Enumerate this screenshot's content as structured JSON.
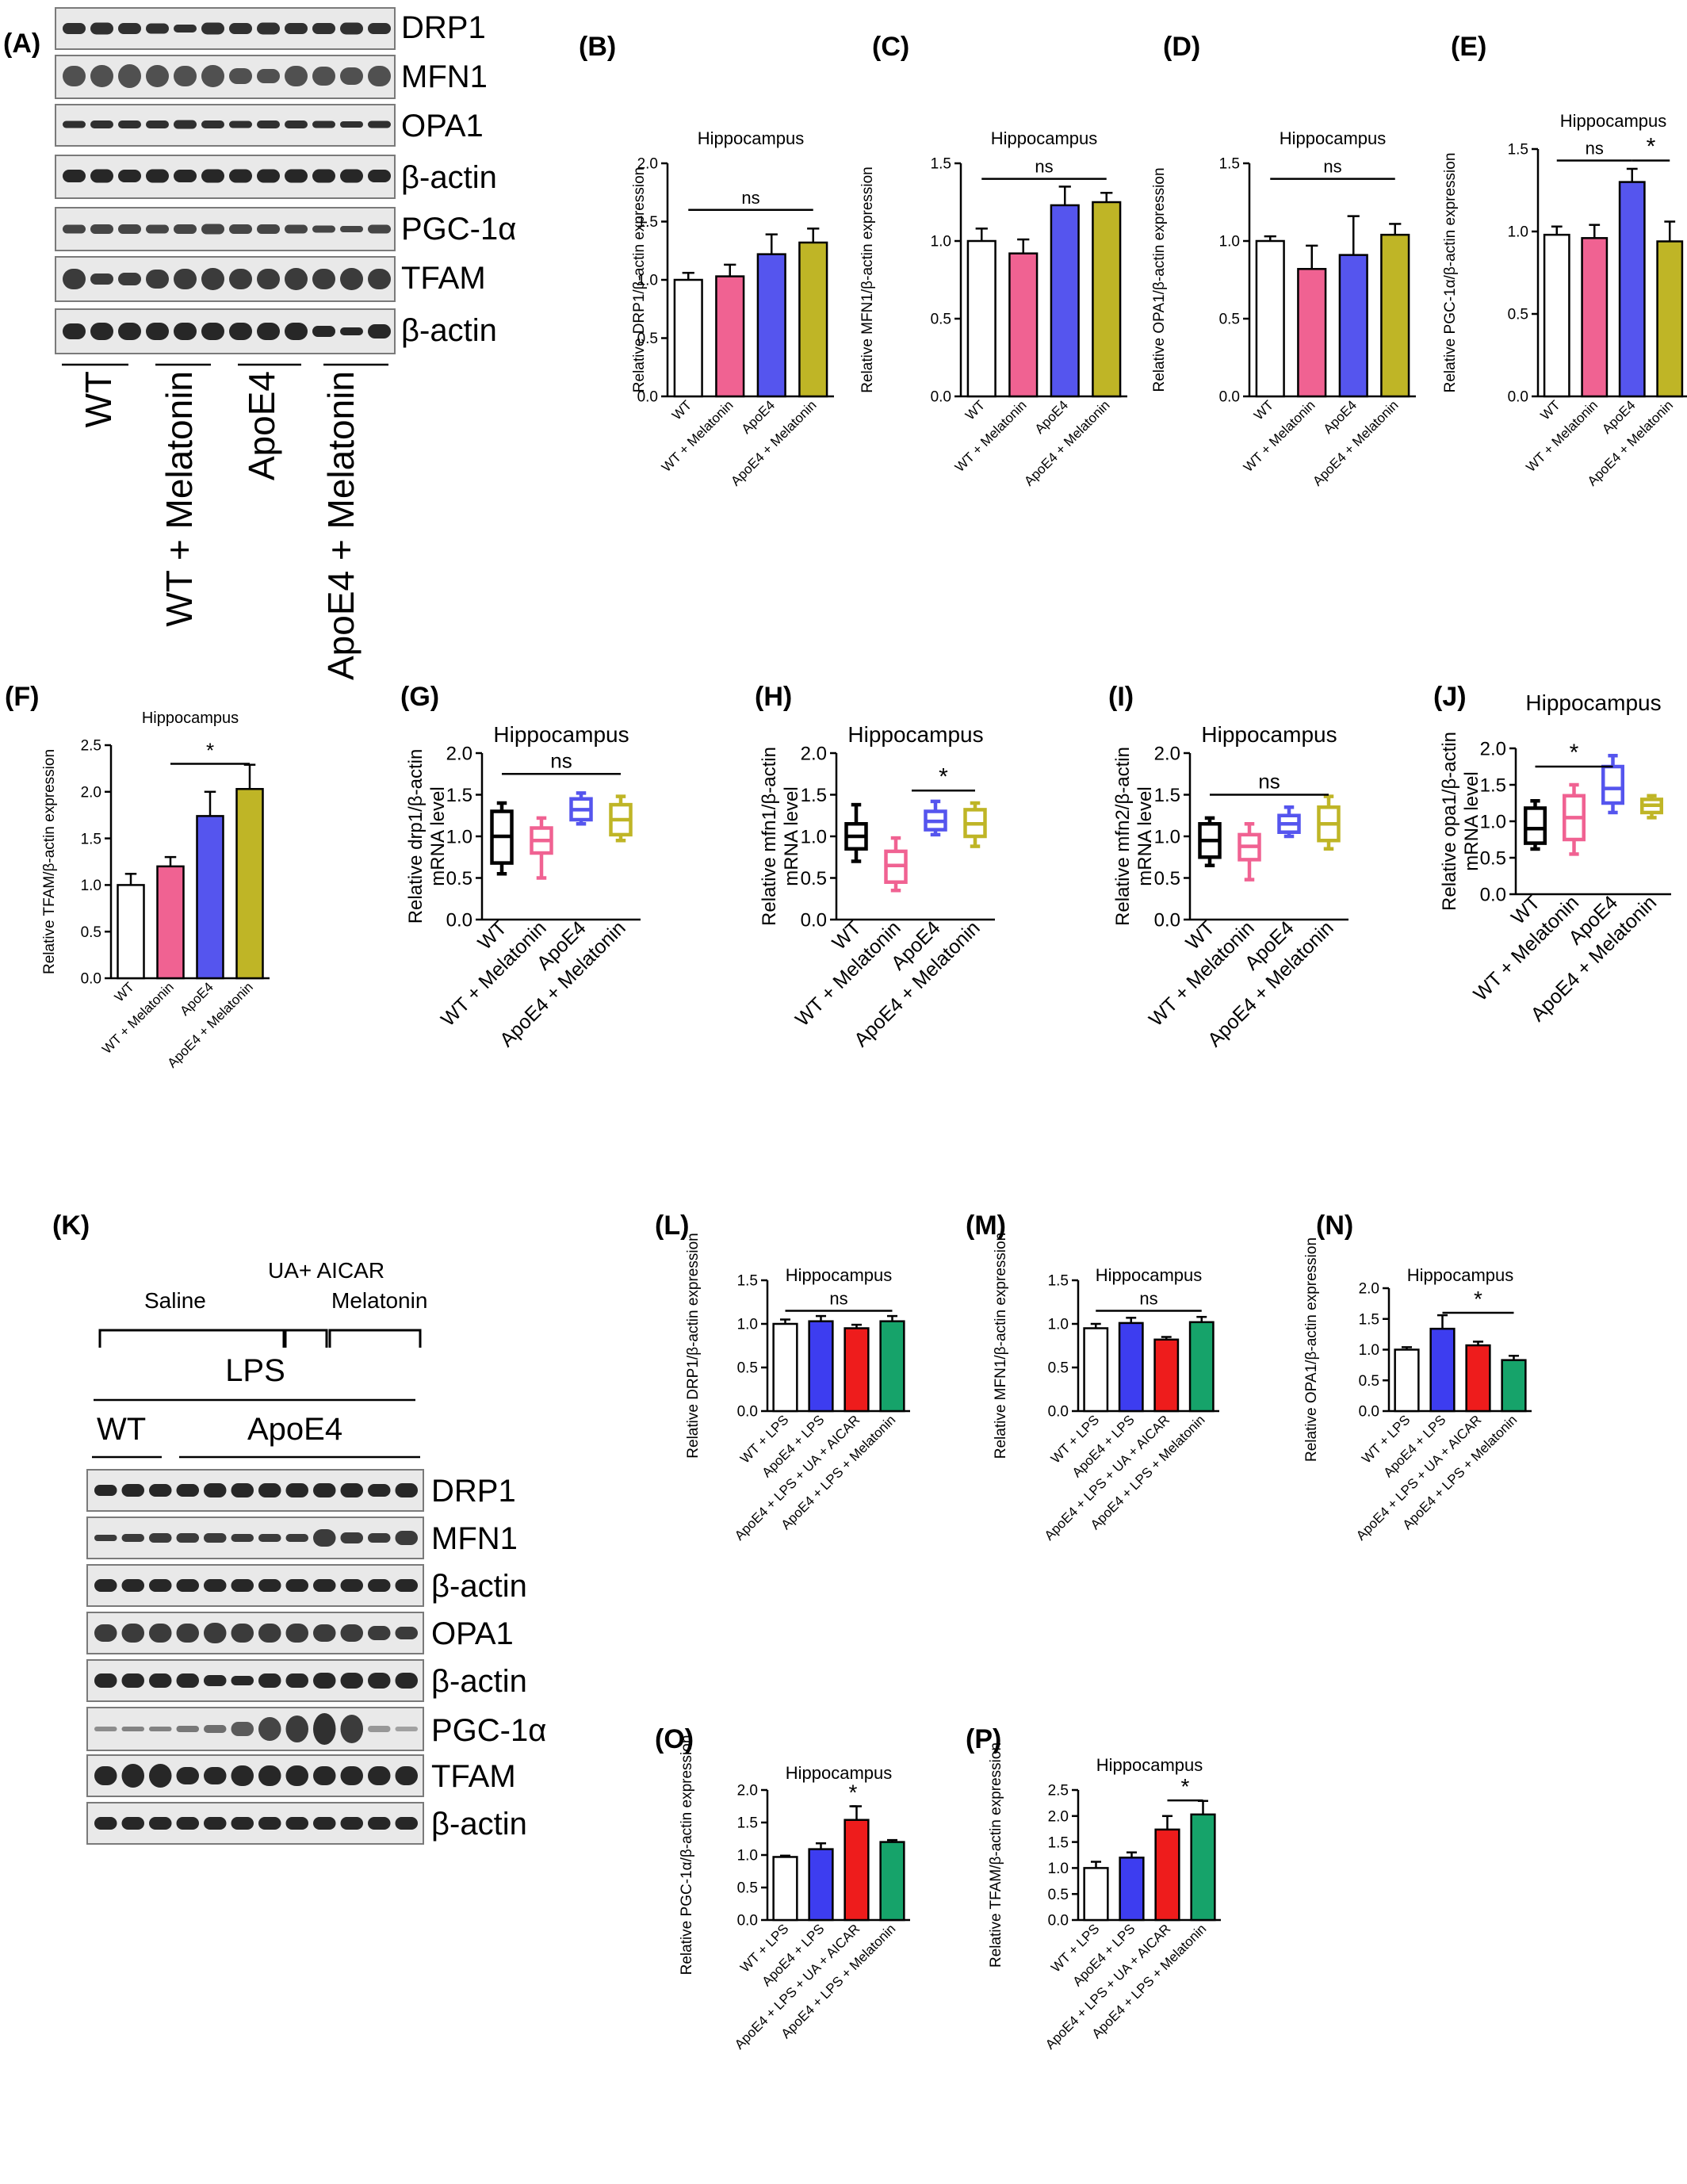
{
  "panel_letters": {
    "A": "(A)",
    "B": "(B)",
    "C": "(C)",
    "D": "(D)",
    "E": "(E)",
    "F": "(F)",
    "G": "(G)",
    "H": "(H)",
    "I": "(I)",
    "J": "(J)",
    "K": "(K)",
    "L": "(L)",
    "M": "(M)",
    "N": "(N)",
    "O": "(O)",
    "P": "(P)"
  },
  "blot_A": {
    "labels": [
      "DRP1",
      "MFN1",
      "OPA1",
      "β-actin",
      "PGC-1α",
      "TFAM",
      "β-actin"
    ],
    "groups": [
      "WT",
      "WT + Melatonin",
      "ApoE4",
      "ApoE4 + Melatonin"
    ]
  },
  "blot_K": {
    "treatment_labels": [
      "Saline",
      "UA+ AICAR",
      "Melatonin"
    ],
    "lps_label": "LPS",
    "genotype_labels": [
      "WT",
      "ApoE4"
    ],
    "labels": [
      "DRP1",
      "MFN1",
      "β-actin",
      "OPA1",
      "β-actin",
      "PGC-1α",
      "TFAM",
      "β-actin"
    ]
  },
  "colors": {
    "WT": "#ffffff",
    "WT_Melatonin": "#f06292",
    "ApoE4": "#5555ee",
    "ApoE4_Melatonin": "#bfb526",
    "ApoE4_LPS": "#3d3df0",
    "ApoE4_LPS_UA_AICAR": "#ee1c1c",
    "ApoE4_LPS_Melatonin": "#16a36a"
  },
  "chart_data": [
    {
      "panel": "B",
      "type": "bar",
      "title": "Hippocampus",
      "ylabel": "Relative DRP1/β-actin expression",
      "categories": [
        "WT",
        "WT + Melatonin",
        "ApoE4",
        "ApoE4 + Melatonin"
      ],
      "values": [
        1.0,
        1.03,
        1.22,
        1.32
      ],
      "errors": [
        0.06,
        0.1,
        0.17,
        0.12
      ],
      "ylim": [
        0.0,
        2.0
      ],
      "yticks": [
        "0.0",
        "0.5",
        "1.0",
        "1.5",
        "2.0"
      ],
      "annotations": [
        "ns"
      ]
    },
    {
      "panel": "C",
      "type": "bar",
      "title": "Hippocampus",
      "ylabel": "Relative MFN1/β-actin expression",
      "categories": [
        "WT",
        "WT + Melatonin",
        "ApoE4",
        "ApoE4 + Melatonin"
      ],
      "values": [
        1.0,
        0.92,
        1.23,
        1.25
      ],
      "errors": [
        0.08,
        0.09,
        0.12,
        0.06
      ],
      "ylim": [
        0.0,
        1.5
      ],
      "yticks": [
        "0.0",
        "0.5",
        "1.0",
        "1.5"
      ],
      "annotations": [
        "ns"
      ]
    },
    {
      "panel": "D",
      "type": "bar",
      "title": "Hippocampus",
      "ylabel": "Relative OPA1/β-actin expression",
      "categories": [
        "WT",
        "WT + Melatonin",
        "ApoE4",
        "ApoE4 + Melatonin"
      ],
      "values": [
        1.0,
        0.82,
        0.91,
        1.04
      ],
      "errors": [
        0.03,
        0.15,
        0.25,
        0.07
      ],
      "ylim": [
        0.0,
        1.5
      ],
      "yticks": [
        "0.0",
        "0.5",
        "1.0",
        "1.5"
      ],
      "annotations": [
        "ns"
      ]
    },
    {
      "panel": "E",
      "type": "bar",
      "title": "Hippocampus",
      "ylabel": "Relative PGC-1α/β-actin expression",
      "categories": [
        "WT",
        "WT + Melatonin",
        "ApoE4",
        "ApoE4 + Melatonin"
      ],
      "values": [
        0.98,
        0.96,
        1.3,
        0.94
      ],
      "errors": [
        0.05,
        0.08,
        0.08,
        0.12
      ],
      "ylim": [
        0.0,
        1.5
      ],
      "yticks": [
        "0.0",
        "0.5",
        "1.0",
        "1.5"
      ],
      "annotations": [
        "ns",
        "*"
      ]
    },
    {
      "panel": "F",
      "type": "bar",
      "title": "Hippocampus",
      "ylabel": "Relative TFAM/β-actin expression",
      "categories": [
        "WT",
        "WT + Melatonin",
        "ApoE4",
        "ApoE4 + Melatonin"
      ],
      "values": [
        1.0,
        1.2,
        1.74,
        2.03
      ],
      "errors": [
        0.12,
        0.1,
        0.26,
        0.26
      ],
      "ylim": [
        0.0,
        2.5
      ],
      "yticks": [
        "0.0",
        "0.5",
        "1.0",
        "1.5",
        "2.0",
        "2.5"
      ],
      "annotations": [
        "*"
      ]
    },
    {
      "panel": "G",
      "type": "box",
      "title": "Hippocampus",
      "ylabel": [
        "Relative drp1/β-actin",
        "mRNA level"
      ],
      "categories": [
        "WT",
        "WT + Melatonin",
        "ApoE4",
        "ApoE4 + Melatonin"
      ],
      "boxes": [
        {
          "min": 0.55,
          "q1": 0.68,
          "median": 1.0,
          "q3": 1.3,
          "max": 1.4
        },
        {
          "min": 0.5,
          "q1": 0.8,
          "median": 0.95,
          "q3": 1.1,
          "max": 1.22
        },
        {
          "min": 1.15,
          "q1": 1.2,
          "median": 1.32,
          "q3": 1.45,
          "max": 1.52
        },
        {
          "min": 0.95,
          "q1": 1.02,
          "median": 1.2,
          "q3": 1.38,
          "max": 1.48
        }
      ],
      "ylim": [
        0.0,
        2.0
      ],
      "yticks": [
        "0.0",
        "0.5",
        "1.0",
        "1.5",
        "2.0"
      ],
      "annotations": [
        "ns"
      ]
    },
    {
      "panel": "H",
      "type": "box",
      "title": "Hippocampus",
      "ylabel": [
        "Relative mfn1/β-actin",
        "mRNA level"
      ],
      "categories": [
        "WT",
        "WT + Melatonin",
        "ApoE4",
        "ApoE4 + Melatonin"
      ],
      "boxes": [
        {
          "min": 0.7,
          "q1": 0.85,
          "median": 1.0,
          "q3": 1.15,
          "max": 1.38
        },
        {
          "min": 0.35,
          "q1": 0.45,
          "median": 0.65,
          "q3": 0.82,
          "max": 0.98
        },
        {
          "min": 1.02,
          "q1": 1.08,
          "median": 1.18,
          "q3": 1.3,
          "max": 1.42
        },
        {
          "min": 0.88,
          "q1": 1.0,
          "median": 1.15,
          "q3": 1.32,
          "max": 1.4
        }
      ],
      "ylim": [
        0.0,
        2.0
      ],
      "yticks": [
        "0.0",
        "0.5",
        "1.0",
        "1.5",
        "2.0"
      ],
      "annotations": [
        "*"
      ]
    },
    {
      "panel": "I",
      "type": "box",
      "title": "Hippocampus",
      "ylabel": [
        "Relative mfn2/β-actin",
        "mRNA level"
      ],
      "categories": [
        "WT",
        "WT + Melatonin",
        "ApoE4",
        "ApoE4 + Melatonin"
      ],
      "boxes": [
        {
          "min": 0.65,
          "q1": 0.75,
          "median": 0.95,
          "q3": 1.15,
          "max": 1.22
        },
        {
          "min": 0.48,
          "q1": 0.72,
          "median": 0.88,
          "q3": 1.02,
          "max": 1.15
        },
        {
          "min": 1.0,
          "q1": 1.05,
          "median": 1.15,
          "q3": 1.25,
          "max": 1.35
        },
        {
          "min": 0.85,
          "q1": 0.95,
          "median": 1.15,
          "q3": 1.35,
          "max": 1.48
        }
      ],
      "ylim": [
        0.0,
        2.0
      ],
      "yticks": [
        "0.0",
        "0.5",
        "1.0",
        "1.5",
        "2.0"
      ],
      "annotations": [
        "ns"
      ]
    },
    {
      "panel": "J",
      "type": "box",
      "title": "Hippocampus",
      "ylabel": [
        "Relative opa1/β-actin",
        "mRNA level"
      ],
      "categories": [
        "WT",
        "WT + Melatonin",
        "ApoE4",
        "ApoE4 + Melatonin"
      ],
      "boxes": [
        {
          "min": 0.62,
          "q1": 0.7,
          "median": 0.9,
          "q3": 1.18,
          "max": 1.28
        },
        {
          "min": 0.55,
          "q1": 0.75,
          "median": 1.05,
          "q3": 1.35,
          "max": 1.5
        },
        {
          "min": 1.12,
          "q1": 1.25,
          "median": 1.45,
          "q3": 1.75,
          "max": 1.9
        },
        {
          "min": 1.05,
          "q1": 1.12,
          "median": 1.22,
          "q3": 1.3,
          "max": 1.35
        }
      ],
      "ylim": [
        0.0,
        2.0
      ],
      "yticks": [
        "0.0",
        "0.5",
        "1.0",
        "1.5",
        "2.0"
      ],
      "annotations": [
        "*"
      ]
    },
    {
      "panel": "L",
      "type": "bar",
      "title": "Hippocampus",
      "ylabel": "Relative DRP1/β-actin expression",
      "categories": [
        "WT + LPS",
        "ApoE4 + LPS",
        "ApoE4 + LPS + UA + AICAR",
        "ApoE4 + LPS + Melatonin"
      ],
      "values": [
        1.0,
        1.03,
        0.95,
        1.03
      ],
      "errors": [
        0.05,
        0.06,
        0.04,
        0.06
      ],
      "ylim": [
        0.0,
        1.5
      ],
      "yticks": [
        "0.0",
        "0.5",
        "1.0",
        "1.5"
      ],
      "annotations": [
        "ns"
      ]
    },
    {
      "panel": "M",
      "type": "bar",
      "title": "Hippocampus",
      "ylabel": "Relative MFN1/β-actin expression",
      "categories": [
        "WT + LPS",
        "ApoE4 + LPS",
        "ApoE4 + LPS + UA + AICAR",
        "ApoE4 + LPS + Melatonin"
      ],
      "values": [
        0.95,
        1.01,
        0.82,
        1.02
      ],
      "errors": [
        0.05,
        0.06,
        0.03,
        0.06
      ],
      "ylim": [
        0.0,
        1.5
      ],
      "yticks": [
        "0.0",
        "0.5",
        "1.0",
        "1.5"
      ],
      "annotations": [
        "ns"
      ]
    },
    {
      "panel": "N",
      "type": "bar",
      "title": "Hippocampus",
      "ylabel": "Relative OPA1/β-actin expression",
      "categories": [
        "WT + LPS",
        "ApoE4 + LPS",
        "ApoE4 + LPS + UA + AICAR",
        "ApoE4 + LPS + Melatonin"
      ],
      "values": [
        1.0,
        1.34,
        1.07,
        0.83
      ],
      "errors": [
        0.04,
        0.22,
        0.06,
        0.07
      ],
      "ylim": [
        0.0,
        2.0
      ],
      "yticks": [
        "0.0",
        "0.5",
        "1.0",
        "1.5",
        "2.0"
      ],
      "annotations": [
        "*"
      ]
    },
    {
      "panel": "O",
      "type": "bar",
      "title": "Hippocampus",
      "ylabel": "Relative PGC-1α/β-actin expression",
      "categories": [
        "WT + LPS",
        "ApoE4 + LPS",
        "ApoE4 + LPS + UA + AICAR",
        "ApoE4 + LPS + Melatonin"
      ],
      "values": [
        0.97,
        1.09,
        1.54,
        1.2
      ],
      "errors": [
        0.02,
        0.09,
        0.21,
        0.03
      ],
      "ylim": [
        0.0,
        2.0
      ],
      "yticks": [
        "0.0",
        "0.5",
        "1.0",
        "1.5",
        "2.0"
      ],
      "annotations": [
        "*"
      ]
    },
    {
      "panel": "P",
      "type": "bar",
      "title": "Hippocampus",
      "ylabel": "Relative TFAM/β-actin expression",
      "categories": [
        "WT + LPS",
        "ApoE4 + LPS",
        "ApoE4 + LPS + UA + AICAR",
        "ApoE4 + LPS + Melatonin"
      ],
      "values": [
        1.0,
        1.2,
        1.74,
        2.03
      ],
      "errors": [
        0.12,
        0.1,
        0.26,
        0.26
      ],
      "ylim": [
        0.0,
        2.5
      ],
      "yticks": [
        "0.0",
        "0.5",
        "1.0",
        "1.5",
        "2.0",
        "2.5"
      ],
      "annotations": [
        "*"
      ]
    }
  ]
}
